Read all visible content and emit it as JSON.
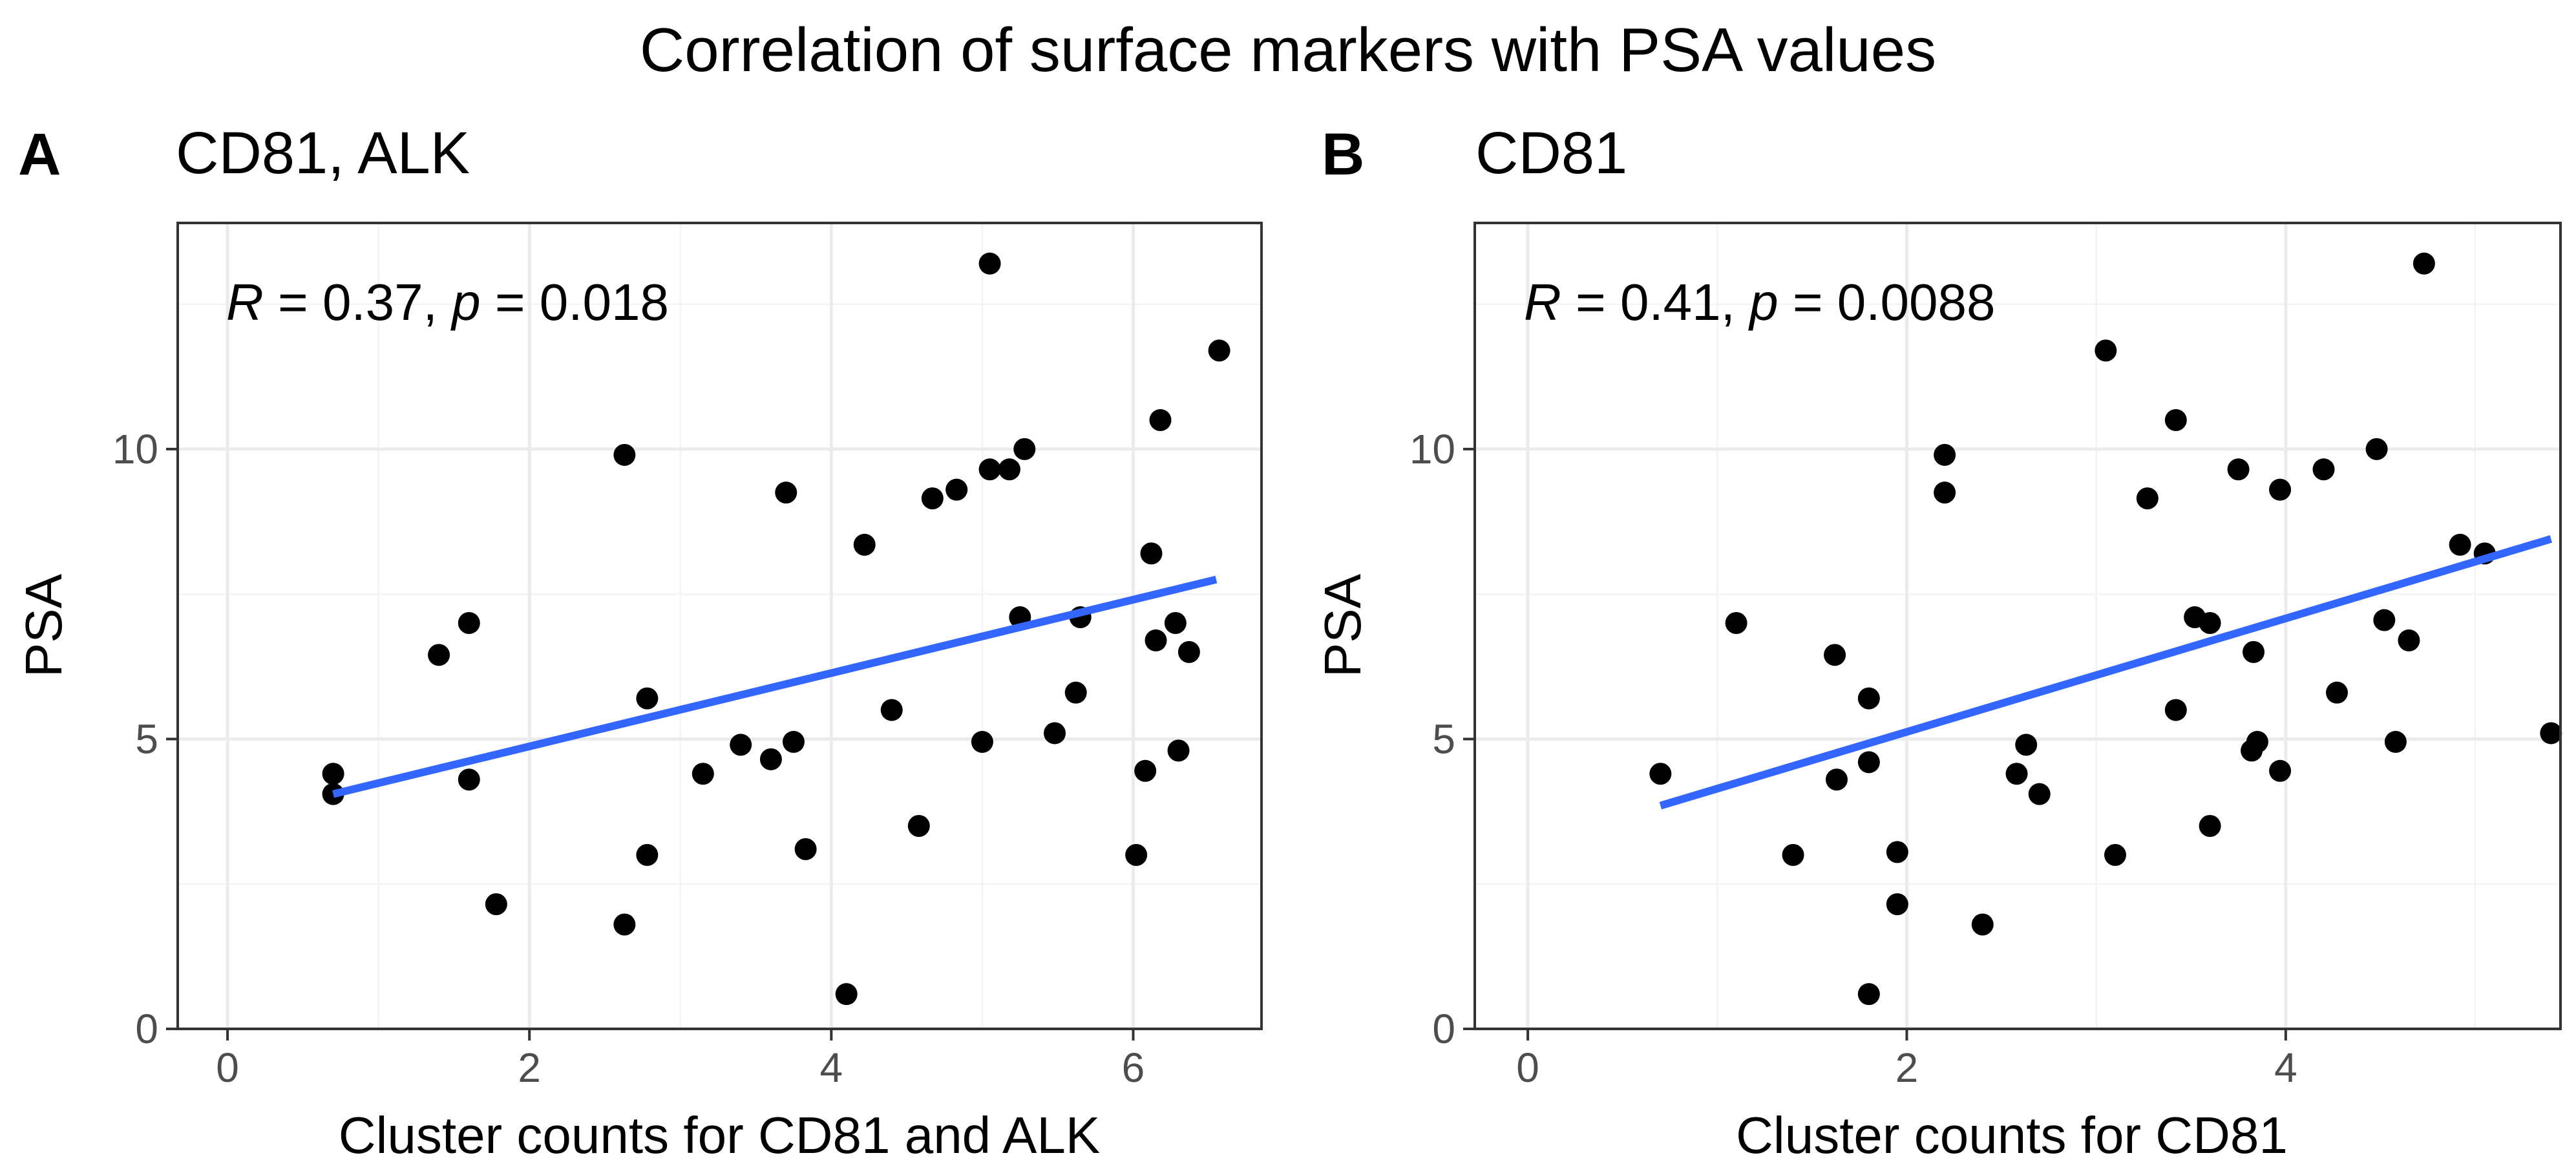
{
  "title": "Correlation of surface markers with PSA values",
  "colors": {
    "points": "#000000",
    "fit_line": "#3366ff",
    "grid": "#ebebeb",
    "border": "#333333"
  },
  "chart_data": [
    {
      "type": "scatter",
      "tag": "A",
      "title": "CD81, ALK",
      "xlabel": "Cluster counts for CD81 and ALK",
      "ylabel": "PSA",
      "xlim": [
        -0.33,
        6.85
      ],
      "ylim": [
        0,
        13.9
      ],
      "xticks": [
        0,
        2,
        4,
        6
      ],
      "yticks": [
        0,
        5,
        10
      ],
      "grid": true,
      "annotation": {
        "r_label": "R",
        "r_value": " = 0.37, ",
        "p_label": "p",
        "p_value": " = 0.018"
      },
      "fit_line": {
        "x": [
          0.7,
          6.55
        ],
        "y": [
          4.05,
          7.75
        ]
      },
      "points": [
        {
          "x": 0.7,
          "y": 4.4
        },
        {
          "x": 0.7,
          "y": 4.05
        },
        {
          "x": 1.4,
          "y": 6.45
        },
        {
          "x": 1.6,
          "y": 7.0
        },
        {
          "x": 1.6,
          "y": 4.3
        },
        {
          "x": 1.78,
          "y": 2.15
        },
        {
          "x": 2.63,
          "y": 9.9
        },
        {
          "x": 2.63,
          "y": 1.8
        },
        {
          "x": 2.78,
          "y": 5.7
        },
        {
          "x": 2.78,
          "y": 3.0
        },
        {
          "x": 3.15,
          "y": 4.4
        },
        {
          "x": 3.4,
          "y": 4.9
        },
        {
          "x": 3.6,
          "y": 4.65
        },
        {
          "x": 3.7,
          "y": 9.25
        },
        {
          "x": 3.75,
          "y": 4.95
        },
        {
          "x": 3.83,
          "y": 3.1
        },
        {
          "x": 4.1,
          "y": 0.6
        },
        {
          "x": 4.22,
          "y": 8.35
        },
        {
          "x": 4.4,
          "y": 5.5
        },
        {
          "x": 4.58,
          "y": 3.5
        },
        {
          "x": 4.67,
          "y": 9.15
        },
        {
          "x": 4.83,
          "y": 9.3
        },
        {
          "x": 5.0,
          "y": 4.95
        },
        {
          "x": 5.05,
          "y": 13.2
        },
        {
          "x": 5.05,
          "y": 9.65
        },
        {
          "x": 5.18,
          "y": 9.65
        },
        {
          "x": 5.25,
          "y": 7.1
        },
        {
          "x": 5.28,
          "y": 10.0
        },
        {
          "x": 5.48,
          "y": 5.1
        },
        {
          "x": 5.62,
          "y": 5.8
        },
        {
          "x": 5.65,
          "y": 7.1
        },
        {
          "x": 6.02,
          "y": 3.0
        },
        {
          "x": 6.08,
          "y": 4.45
        },
        {
          "x": 6.12,
          "y": 8.2
        },
        {
          "x": 6.15,
          "y": 6.7
        },
        {
          "x": 6.18,
          "y": 10.5
        },
        {
          "x": 6.28,
          "y": 7.0
        },
        {
          "x": 6.3,
          "y": 4.8
        },
        {
          "x": 6.37,
          "y": 6.5
        },
        {
          "x": 6.57,
          "y": 11.7
        }
      ]
    },
    {
      "type": "scatter",
      "tag": "B",
      "title": "CD81",
      "xlabel": "Cluster counts for CD81",
      "ylabel": "PSA",
      "xlim": [
        -0.28,
        5.45
      ],
      "ylim": [
        0,
        13.9
      ],
      "xticks": [
        0,
        2,
        4
      ],
      "yticks": [
        0,
        5,
        10
      ],
      "grid": true,
      "annotation": {
        "r_label": "R",
        "r_value": " = 0.41, ",
        "p_label": "p",
        "p_value": " = 0.0088"
      },
      "fit_line": {
        "x": [
          0.7,
          5.4
        ],
        "y": [
          3.85,
          8.45
        ]
      },
      "points": [
        {
          "x": 0.7,
          "y": 4.4
        },
        {
          "x": 1.1,
          "y": 7.0
        },
        {
          "x": 1.4,
          "y": 3.0
        },
        {
          "x": 1.62,
          "y": 6.45
        },
        {
          "x": 1.63,
          "y": 4.3
        },
        {
          "x": 1.8,
          "y": 5.7
        },
        {
          "x": 1.8,
          "y": 4.6
        },
        {
          "x": 1.8,
          "y": 0.6
        },
        {
          "x": 1.95,
          "y": 3.05
        },
        {
          "x": 1.95,
          "y": 2.15
        },
        {
          "x": 2.2,
          "y": 9.9
        },
        {
          "x": 2.2,
          "y": 9.25
        },
        {
          "x": 2.4,
          "y": 1.8
        },
        {
          "x": 2.58,
          "y": 4.4
        },
        {
          "x": 2.63,
          "y": 4.9
        },
        {
          "x": 2.7,
          "y": 4.05
        },
        {
          "x": 3.05,
          "y": 11.7
        },
        {
          "x": 3.1,
          "y": 3.0
        },
        {
          "x": 3.27,
          "y": 9.15
        },
        {
          "x": 3.42,
          "y": 10.5
        },
        {
          "x": 3.42,
          "y": 5.5
        },
        {
          "x": 3.52,
          "y": 7.1
        },
        {
          "x": 3.6,
          "y": 7.0
        },
        {
          "x": 3.6,
          "y": 3.5
        },
        {
          "x": 3.75,
          "y": 9.65
        },
        {
          "x": 3.82,
          "y": 4.8
        },
        {
          "x": 3.83,
          "y": 6.5
        },
        {
          "x": 3.85,
          "y": 4.95
        },
        {
          "x": 3.97,
          "y": 9.3
        },
        {
          "x": 3.97,
          "y": 4.45
        },
        {
          "x": 4.2,
          "y": 9.65
        },
        {
          "x": 4.27,
          "y": 5.8
        },
        {
          "x": 4.48,
          "y": 10.0
        },
        {
          "x": 4.52,
          "y": 7.05
        },
        {
          "x": 4.58,
          "y": 4.95
        },
        {
          "x": 4.65,
          "y": 6.7
        },
        {
          "x": 4.73,
          "y": 13.2
        },
        {
          "x": 4.92,
          "y": 8.35
        },
        {
          "x": 5.05,
          "y": 8.2
        },
        {
          "x": 5.4,
          "y": 5.1
        }
      ]
    }
  ]
}
